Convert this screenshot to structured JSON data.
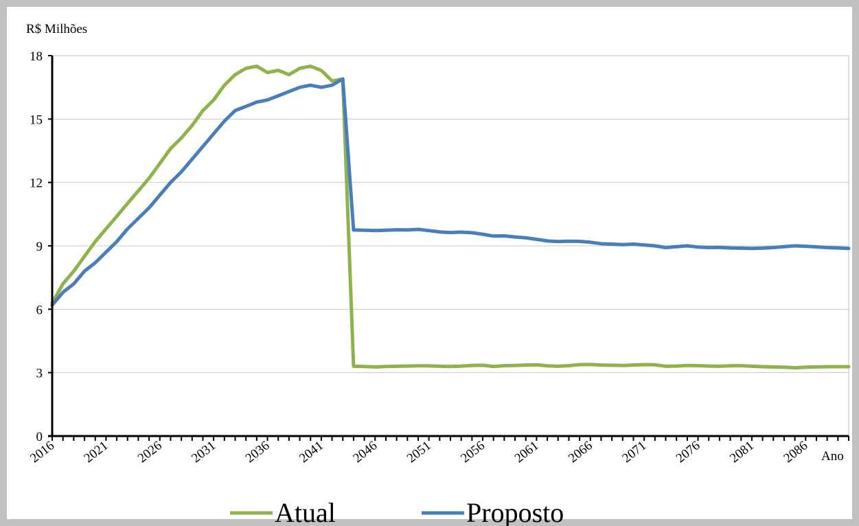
{
  "chart_data": {
    "type": "line",
    "ylabel": "R$ Milhões",
    "xlabel": "Ano",
    "ylim": [
      0,
      18
    ],
    "yticks": [
      0,
      3,
      6,
      9,
      12,
      15,
      18
    ],
    "xlim": [
      2016,
      2090
    ],
    "xtick_labels": [
      "2016",
      "2021",
      "2026",
      "2031",
      "2036",
      "2041",
      "2046",
      "2051",
      "2056",
      "2061",
      "2066",
      "2071",
      "2076",
      "2081",
      "2086"
    ],
    "grid": "horizontal",
    "legend_position": "bottom",
    "x": [
      2016,
      2017,
      2018,
      2019,
      2020,
      2021,
      2022,
      2023,
      2024,
      2025,
      2026,
      2027,
      2028,
      2029,
      2030,
      2031,
      2032,
      2033,
      2034,
      2035,
      2036,
      2037,
      2038,
      2039,
      2040,
      2041,
      2042,
      2043,
      2044,
      2045,
      2046,
      2047,
      2048,
      2049,
      2050,
      2051,
      2052,
      2053,
      2054,
      2055,
      2056,
      2057,
      2058,
      2059,
      2060,
      2061,
      2062,
      2063,
      2064,
      2065,
      2066,
      2067,
      2068,
      2069,
      2070,
      2071,
      2072,
      2073,
      2074,
      2075,
      2076,
      2077,
      2078,
      2079,
      2080,
      2081,
      2082,
      2083,
      2084,
      2085,
      2086,
      2087,
      2088,
      2089,
      2090
    ],
    "series": [
      {
        "name": "Atual",
        "color": "#8db34a",
        "values": [
          6.3,
          7.2,
          7.8,
          8.5,
          9.2,
          9.8,
          10.4,
          11.0,
          11.6,
          12.2,
          12.9,
          13.6,
          14.1,
          14.7,
          15.4,
          15.9,
          16.6,
          17.1,
          17.4,
          17.5,
          17.2,
          17.3,
          17.1,
          17.4,
          17.5,
          17.3,
          16.8,
          16.9,
          3.3,
          3.29,
          3.27,
          3.29,
          3.3,
          3.31,
          3.32,
          3.32,
          3.3,
          3.29,
          3.31,
          3.34,
          3.35,
          3.29,
          3.33,
          3.34,
          3.36,
          3.37,
          3.32,
          3.3,
          3.33,
          3.38,
          3.39,
          3.36,
          3.35,
          3.34,
          3.36,
          3.38,
          3.37,
          3.3,
          3.31,
          3.34,
          3.33,
          3.31,
          3.3,
          3.32,
          3.33,
          3.3,
          3.28,
          3.27,
          3.26,
          3.23,
          3.26,
          3.27,
          3.28,
          3.28,
          3.28
        ]
      },
      {
        "name": "Proposto",
        "color": "#4a7ebb",
        "values": [
          6.2,
          6.8,
          7.2,
          7.8,
          8.2,
          8.7,
          9.2,
          9.8,
          10.3,
          10.8,
          11.4,
          12.0,
          12.5,
          13.1,
          13.7,
          14.3,
          14.9,
          15.4,
          15.6,
          15.8,
          15.9,
          16.1,
          16.3,
          16.5,
          16.6,
          16.5,
          16.6,
          16.9,
          9.75,
          9.74,
          9.72,
          9.74,
          9.76,
          9.75,
          9.78,
          9.72,
          9.66,
          9.63,
          9.65,
          9.62,
          9.55,
          9.46,
          9.47,
          9.42,
          9.38,
          9.31,
          9.23,
          9.2,
          9.22,
          9.21,
          9.17,
          9.1,
          9.08,
          9.06,
          9.08,
          9.04,
          9.0,
          8.92,
          8.96,
          9.0,
          8.94,
          8.92,
          8.93,
          8.9,
          8.89,
          8.88,
          8.89,
          8.92,
          8.96,
          9.0,
          8.98,
          8.95,
          8.92,
          8.9,
          8.88
        ]
      }
    ]
  }
}
